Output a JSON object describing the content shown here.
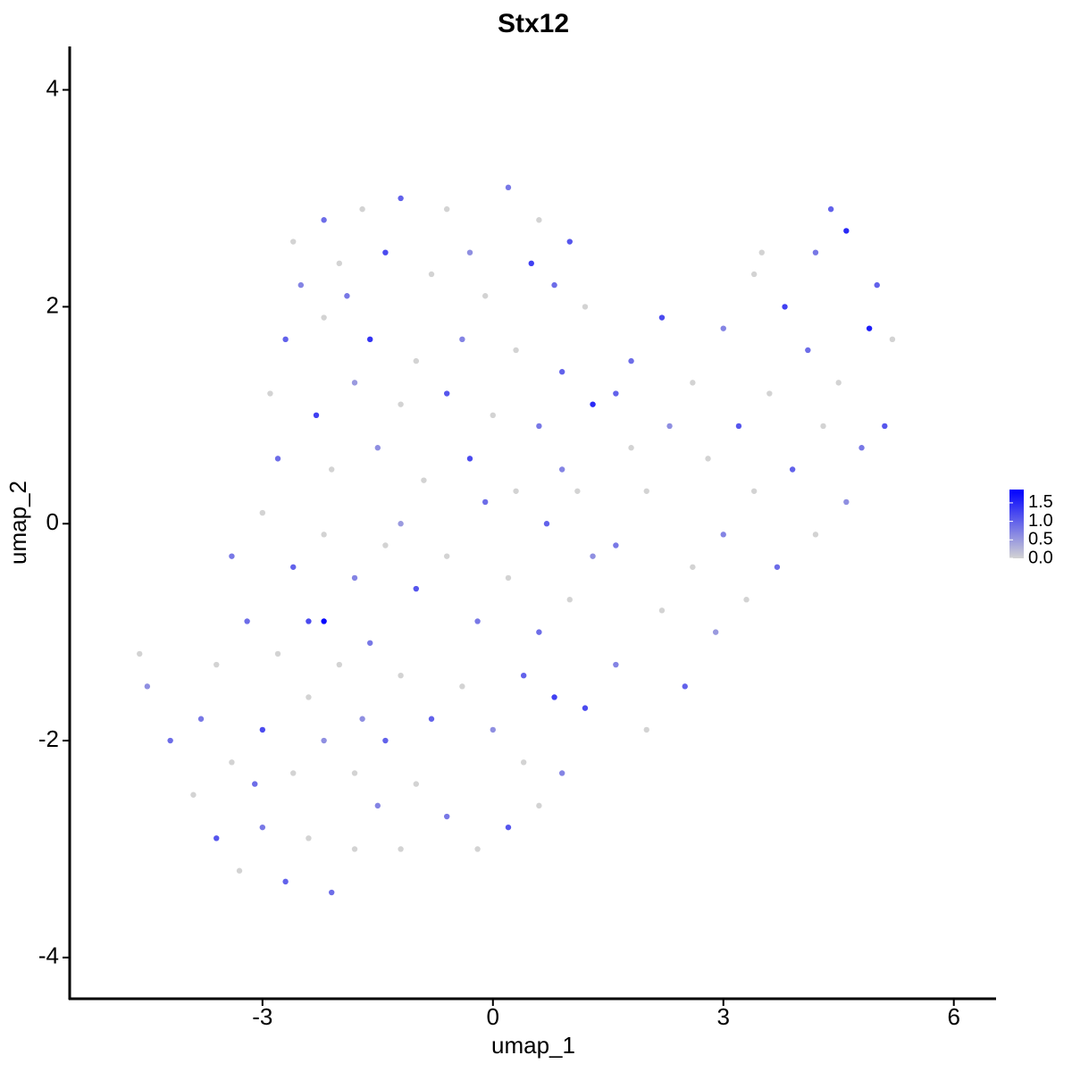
{
  "chart_data": {
    "type": "scatter",
    "title": "Stx12",
    "x_label": "umap_1",
    "y_label": "umap_2",
    "xlim": [
      -5.51,
      6.55
    ],
    "ylim": [
      -4.38,
      4.4
    ],
    "xticks": [
      -3,
      0,
      3,
      6
    ],
    "yticks": [
      -4,
      -2,
      0,
      2,
      4
    ],
    "color_low": "#d3d3d3",
    "color_high": "#0000ff",
    "color_lim": [
      0,
      1.86
    ],
    "color_ticks": [
      {
        "value": 0,
        "label": "0.0"
      },
      {
        "value": 0.5,
        "label": "0.5"
      },
      {
        "value": 1,
        "label": "1.0"
      },
      {
        "value": 1.5,
        "label": "1.5"
      }
    ],
    "x": [
      -2.2,
      -1.7,
      -1.2,
      -0.6,
      0.2,
      0.6,
      1.0,
      -2.5,
      -2.0,
      -1.4,
      -0.8,
      -0.3,
      0.5,
      1.2,
      -2.7,
      -2.2,
      -1.6,
      -1.0,
      -0.4,
      0.3,
      0.9,
      -2.9,
      -2.3,
      -1.8,
      -1.2,
      -0.6,
      0,
      0.6,
      1.3,
      -2.8,
      -2.1,
      -1.5,
      -0.9,
      -0.3,
      0.3,
      0.9,
      -2.6,
      -1.9,
      -0.1,
      0.8,
      1.8,
      2.2,
      2.6,
      3.0,
      3.4,
      3.8,
      4.2,
      4.6,
      5.0,
      5.2,
      4.9,
      4.5,
      4.1,
      3.6,
      3.2,
      2.8,
      2.3,
      1.8,
      1.6,
      4.8,
      4.3,
      3.9,
      3.4,
      3.0,
      2.6,
      4.6,
      4.2,
      3.7,
      3.3,
      2.9,
      5.1,
      4.4,
      2.0,
      1.6,
      2.2,
      2.5,
      2.0,
      1.6,
      1.2,
      3.5,
      -4.6,
      -4.5,
      -4.2,
      -3.9,
      -3.6,
      -3.3,
      -3.0,
      -2.7,
      -2.4,
      -2.1,
      -1.8,
      -1.5,
      -1.2,
      -3.8,
      -3.4,
      -3.0,
      -2.6,
      -2.2,
      -1.8,
      -1.4,
      -1.0,
      -0.6,
      -0.2,
      0.2,
      0.6,
      0.9,
      -3.6,
      -3.2,
      -2.8,
      -2.4,
      -2.0,
      -1.6,
      -1.2,
      -0.8,
      -0.4,
      0,
      0.4,
      0.8,
      -3.4,
      -3.0,
      -2.6,
      -2.2,
      -1.8,
      -1.4,
      -1.0,
      -0.6,
      -0.2,
      0.2,
      0.6,
      1.0,
      1.3,
      0.7,
      1.1,
      -2.2,
      -0.1,
      -1.2,
      0.4,
      -2.4,
      -3.1,
      -1.7
    ],
    "y": [
      2.8,
      2.9,
      3.0,
      2.9,
      3.1,
      2.8,
      2.6,
      2.2,
      2.4,
      2.5,
      2.3,
      2.5,
      2.4,
      2.0,
      1.7,
      1.9,
      1.7,
      1.5,
      1.7,
      1.6,
      1.4,
      1.2,
      1.0,
      1.3,
      1.1,
      1.2,
      1.0,
      0.9,
      1.1,
      0.6,
      0.5,
      0.7,
      0.4,
      0.6,
      0.3,
      0.5,
      2.6,
      2.1,
      2.1,
      2.2,
      1.5,
      1.9,
      1.3,
      1.8,
      2.3,
      2.0,
      2.5,
      2.7,
      2.2,
      1.7,
      1.8,
      1.3,
      1.6,
      1.2,
      0.9,
      0.6,
      0.9,
      0.7,
      1.2,
      0.7,
      0.9,
      0.5,
      0.3,
      -0.1,
      -0.4,
      0.2,
      -0.1,
      -0.4,
      -0.7,
      -1.0,
      0.9,
      2.9,
      0.3,
      -0.2,
      -0.8,
      -1.5,
      -1.9,
      -1.3,
      -1.7,
      2.5,
      -1.2,
      -1.5,
      -2.0,
      -2.5,
      -2.9,
      -3.2,
      -2.8,
      -3.3,
      -2.9,
      -3.4,
      -3.0,
      -2.6,
      -3.0,
      -1.8,
      -2.2,
      -1.9,
      -2.3,
      -2.0,
      -2.3,
      -2.0,
      -2.4,
      -2.7,
      -3.0,
      -2.8,
      -2.6,
      -2.3,
      -1.3,
      -0.9,
      -1.2,
      -0.9,
      -1.3,
      -1.1,
      -1.4,
      -1.8,
      -1.5,
      -1.9,
      -2.2,
      -1.6,
      -0.3,
      0.1,
      -0.4,
      -0.1,
      -0.5,
      -0.2,
      -0.6,
      -0.3,
      -0.9,
      -0.5,
      -1.0,
      -0.7,
      -0.3,
      0,
      0.3,
      -0.9,
      0.2,
      0.0,
      -1.4,
      -1.6,
      -2.4,
      -1.8
    ],
    "values": [
      0.9,
      0,
      1.0,
      0,
      0.8,
      0,
      1.1,
      0.7,
      0,
      1.2,
      0,
      0.6,
      1.3,
      0,
      1.0,
      0,
      1.4,
      0,
      0.7,
      0,
      1.0,
      0,
      1.3,
      0.5,
      0,
      1.1,
      0,
      0.8,
      1.5,
      0.9,
      0,
      0.6,
      0,
      1.2,
      0,
      0.7,
      0,
      0.8,
      0,
      0.9,
      0.9,
      1.2,
      0,
      0.7,
      0,
      1.3,
      0.8,
      1.5,
      1.0,
      0,
      1.6,
      0,
      0.9,
      0,
      1.1,
      0,
      0.6,
      0,
      1.0,
      0.8,
      0,
      1.0,
      0,
      0.7,
      0,
      0.6,
      0,
      0.9,
      0,
      0.5,
      1.1,
      1.0,
      0,
      0.8,
      0,
      1.0,
      0,
      0.7,
      1.2,
      0,
      0,
      0.6,
      0.9,
      0,
      1.1,
      0,
      0.8,
      1.0,
      0,
      0.9,
      0,
      0.7,
      0,
      0.8,
      0,
      1.2,
      0,
      0.6,
      0,
      1.0,
      0,
      0.8,
      0,
      1.1,
      0,
      0.7,
      0,
      0.9,
      0,
      1.2,
      0,
      0.8,
      0,
      1.0,
      0,
      0.6,
      0,
      1.3,
      0.8,
      0,
      1.0,
      0,
      0.7,
      0,
      1.1,
      0,
      0.8,
      0,
      0.9,
      0,
      0.6,
      1.0,
      0,
      1.8,
      0.9,
      0.5,
      1.0,
      0,
      0.9,
      0.6
    ]
  }
}
